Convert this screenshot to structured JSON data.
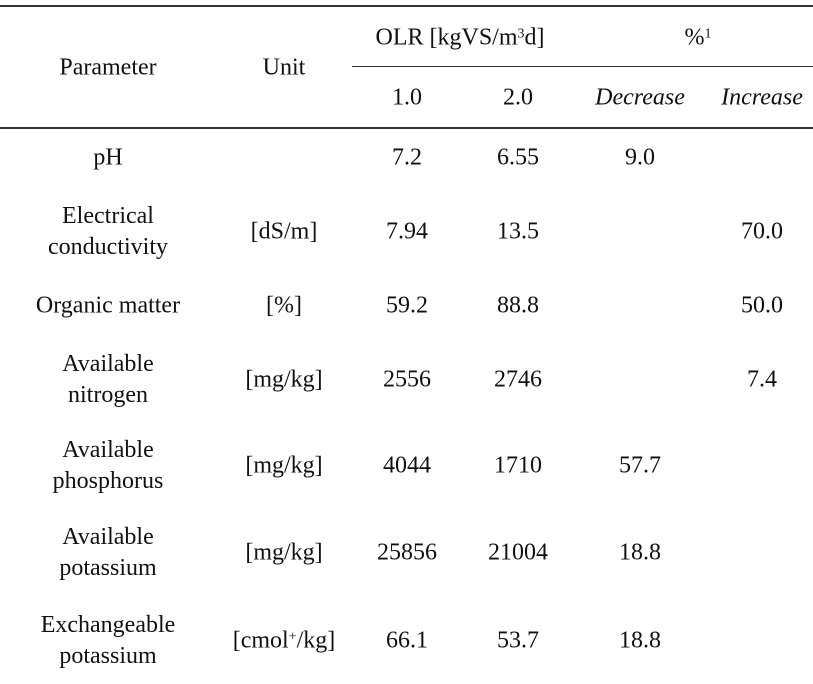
{
  "header": {
    "parameter": "Parameter",
    "unit": "Unit",
    "olr": {
      "pre": "OLR [kgVS/m",
      "sup": "3",
      "post": "d]"
    },
    "percent": {
      "pre": "%",
      "sup": "1"
    },
    "sub": [
      "1.0",
      "2.0",
      "Decrease",
      "Increase"
    ]
  },
  "rows": [
    {
      "param": [
        "pH"
      ],
      "unit": "",
      "v1": "7.2",
      "v2": "6.55",
      "dec": "9.0",
      "inc": ""
    },
    {
      "param": [
        "Electrical",
        "conductivity"
      ],
      "unit": "[dS/m]",
      "v1": "7.94",
      "v2": "13.5",
      "dec": "",
      "inc": "70.0"
    },
    {
      "param": [
        "Organic matter"
      ],
      "unit": "[%]",
      "v1": "59.2",
      "v2": "88.8",
      "dec": "",
      "inc": "50.0"
    },
    {
      "param": [
        "Available",
        "nitrogen"
      ],
      "unit": "[mg/kg]",
      "v1": "2556",
      "v2": "2746",
      "dec": "",
      "inc": "7.4"
    },
    {
      "param": [
        "Available",
        "phosphorus"
      ],
      "unit": "[mg/kg]",
      "v1": "4044",
      "v2": "1710",
      "dec": "57.7",
      "inc": ""
    },
    {
      "param": [
        "Available",
        "potassium"
      ],
      "unit": "[mg/kg]",
      "v1": "25856",
      "v2": "21004",
      "dec": "18.8",
      "inc": ""
    },
    {
      "param": [
        "Exchangeable",
        "potassium"
      ],
      "unit": {
        "pre": "[cmol",
        "sup": "+",
        "post": "/kg]"
      },
      "v1": "66.1",
      "v2": "53.7",
      "dec": "18.8",
      "inc": ""
    }
  ]
}
